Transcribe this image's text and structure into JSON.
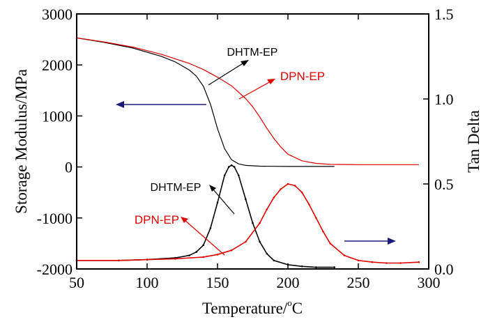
{
  "chart_data": {
    "type": "line",
    "title": "",
    "xlabel": "Temperature/",
    "xlabel_unit": "C",
    "xlabel_degree": "o",
    "ylabel_left": "Storage Modulus/MPa",
    "ylabel_right": "Tan Delta",
    "xlim": [
      50,
      300
    ],
    "ylim_left": [
      -2000,
      3000
    ],
    "ylim_right": [
      0.0,
      1.5
    ],
    "x_ticks": [
      "50",
      "100",
      "150",
      "200",
      "250",
      "300"
    ],
    "y_left_ticks": [
      "-2000",
      "-1000",
      "0",
      "1000",
      "2000",
      "3000"
    ],
    "y_right_ticks": [
      "0.0",
      "0.5",
      "1.0",
      "1.5"
    ],
    "colors": {
      "DHTM-EP": "#000000",
      "DPN-EP": "#e00000",
      "arrow": "#1a1a7a"
    },
    "series": [
      {
        "name": "DHTM-EP",
        "kind": "storage_modulus",
        "axis": "left",
        "color": "#000000",
        "x": [
          50,
          70,
          90,
          110,
          120,
          130,
          135,
          140,
          145,
          150,
          155,
          160,
          165,
          170,
          180,
          190,
          200,
          210,
          220,
          233
        ],
        "y": [
          2530,
          2440,
          2330,
          2170,
          2060,
          1900,
          1780,
          1580,
          1230,
          750,
          360,
          140,
          60,
          30,
          15,
          12,
          10,
          10,
          10,
          10
        ]
      },
      {
        "name": "DPN-EP",
        "kind": "storage_modulus",
        "axis": "left",
        "color": "#e00000",
        "x": [
          50,
          70,
          90,
          110,
          130,
          140,
          150,
          160,
          170,
          175,
          180,
          185,
          190,
          195,
          200,
          210,
          220,
          230,
          250,
          270,
          293
        ],
        "y": [
          2530,
          2450,
          2350,
          2210,
          2030,
          1910,
          1760,
          1590,
          1340,
          1180,
          980,
          760,
          560,
          390,
          250,
          120,
          70,
          50,
          45,
          45,
          45
        ]
      },
      {
        "name": "DHTM-EP",
        "kind": "tan_delta",
        "axis": "right",
        "color": "#000000",
        "x": [
          50,
          80,
          100,
          120,
          130,
          135,
          140,
          145,
          150,
          155,
          158,
          160,
          162,
          165,
          170,
          175,
          180,
          185,
          190,
          200,
          210,
          220,
          233
        ],
        "y": [
          0.05,
          0.05,
          0.055,
          0.065,
          0.08,
          0.1,
          0.14,
          0.24,
          0.39,
          0.55,
          0.6,
          0.61,
          0.6,
          0.55,
          0.41,
          0.27,
          0.16,
          0.09,
          0.05,
          0.025,
          0.015,
          0.01,
          0.01
        ]
      },
      {
        "name": "DPN-EP",
        "kind": "tan_delta",
        "axis": "right",
        "color": "#e00000",
        "x": [
          50,
          80,
          100,
          120,
          140,
          150,
          160,
          170,
          180,
          185,
          190,
          195,
          200,
          205,
          210,
          215,
          220,
          225,
          230,
          240,
          250,
          260,
          270,
          280,
          293
        ],
        "y": [
          0.05,
          0.05,
          0.055,
          0.06,
          0.07,
          0.085,
          0.11,
          0.16,
          0.27,
          0.35,
          0.42,
          0.47,
          0.5,
          0.49,
          0.45,
          0.38,
          0.3,
          0.22,
          0.15,
          0.08,
          0.05,
          0.04,
          0.035,
          0.035,
          0.04
        ]
      }
    ],
    "annotations": [
      {
        "text": "DHTM-EP",
        "color": "#000000",
        "target": "storage_modulus",
        "x": 170,
        "y_left": 1870
      },
      {
        "text": "DPN-EP",
        "color": "#e00000",
        "target": "storage_modulus",
        "x": 203,
        "y_left": 1700
      },
      {
        "text": "DHTM-EP",
        "color": "#000000",
        "target": "tan_delta",
        "x": 93,
        "y_left": -560
      },
      {
        "text": "DPN-EP",
        "color": "#e00000",
        "target": "tan_delta",
        "x": 65,
        "y_left": -1020
      }
    ],
    "axis_arrows": [
      {
        "direction": "left",
        "meaning": "points to left axis"
      },
      {
        "direction": "right",
        "meaning": "points to right axis"
      }
    ],
    "grid": false,
    "legend": "none"
  }
}
